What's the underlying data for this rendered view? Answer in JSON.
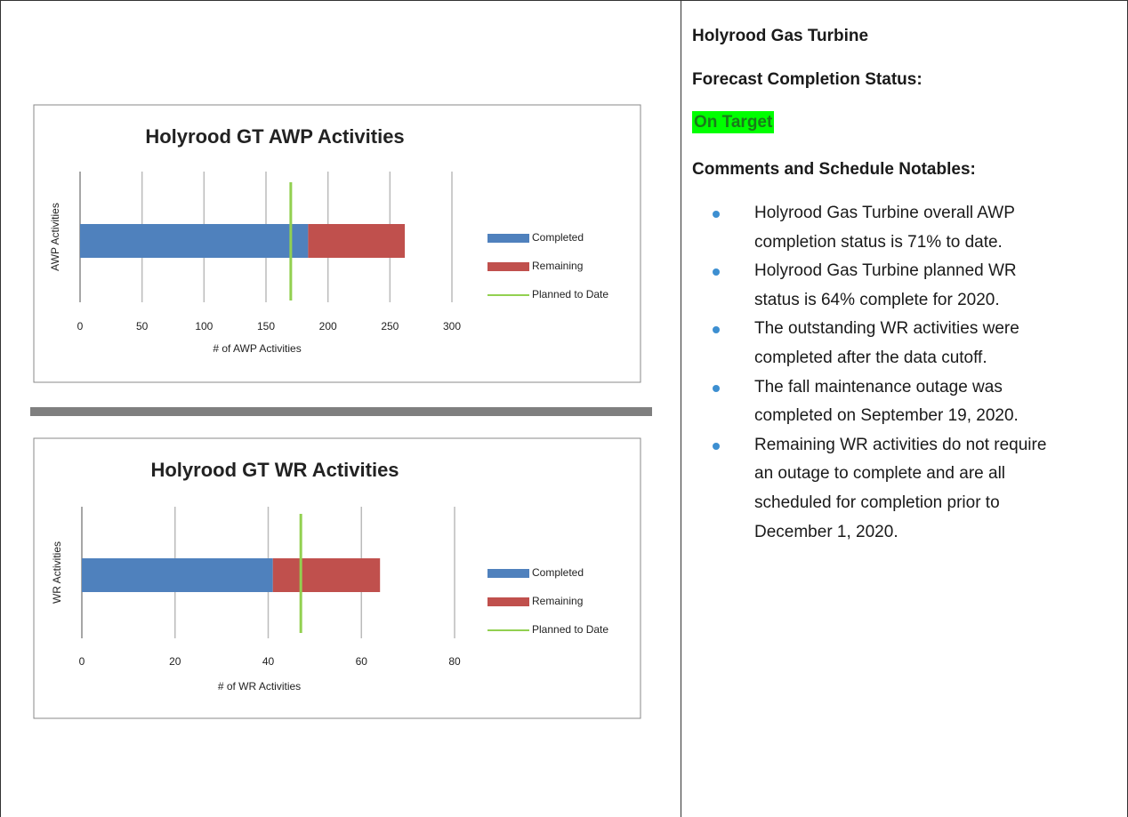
{
  "chart_data": [
    {
      "type": "bar",
      "orientation": "horizontal",
      "stacked": true,
      "title": "Holyrood GT AWP Activities",
      "xlabel": "# of AWP Activities",
      "ylabel": "AWP Activities",
      "xlim": [
        0,
        300
      ],
      "xticks": [
        0,
        50,
        100,
        150,
        200,
        250,
        300
      ],
      "grid": true,
      "legend": "right",
      "series": [
        {
          "name": "Completed",
          "color": "#4f81bd",
          "values": [
            184
          ]
        },
        {
          "name": "Remaining",
          "color": "#c0504d",
          "values": [
            78
          ]
        }
      ],
      "planned": {
        "name": "Planned to Date",
        "color": "#92d050",
        "value": 170
      }
    },
    {
      "type": "bar",
      "orientation": "horizontal",
      "stacked": true,
      "title": "Holyrood GT WR Activities",
      "xlabel": "# of WR Activities",
      "ylabel": "WR Activities",
      "xlim": [
        0,
        80
      ],
      "xticks": [
        0,
        20,
        40,
        60,
        80
      ],
      "grid": true,
      "legend": "right",
      "series": [
        {
          "name": "Completed",
          "color": "#4f81bd",
          "values": [
            41
          ]
        },
        {
          "name": "Remaining",
          "color": "#c0504d",
          "values": [
            23
          ]
        }
      ],
      "planned": {
        "name": "Planned to Date",
        "color": "#92d050",
        "value": 47
      }
    }
  ],
  "panel": {
    "heading": "Holyrood Gas Turbine",
    "status_label": "Forecast Completion Status:",
    "status": "On Target",
    "comments_label": "Comments and Schedule Notables:",
    "bullets": [
      "Holyrood Gas Turbine overall AWP completion status is 71% to date.",
      "Holyrood Gas Turbine planned WR status is 64% complete for 2020.",
      "The outstanding WR activities were completed after the data cutoff.",
      "The fall maintenance outage was completed on September 19, 2020.",
      "Remaining WR activities do not require an outage to complete and are all scheduled for completion prior to December 1, 2020."
    ]
  }
}
